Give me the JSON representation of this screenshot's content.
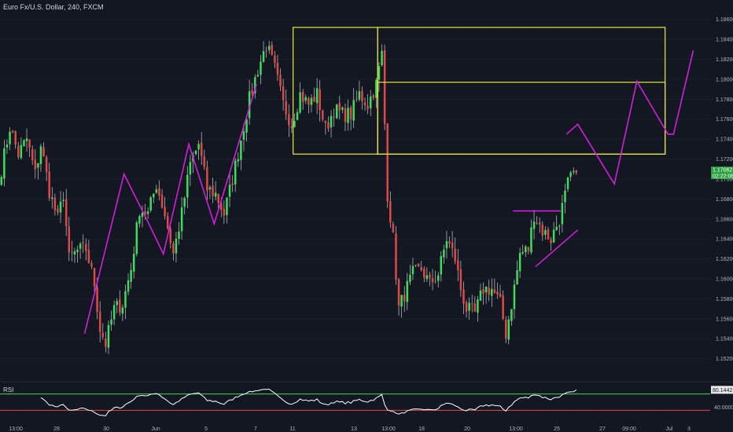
{
  "header": {
    "symbol_title": "Euro Fx/U.S. Dollar, 240, FXCM"
  },
  "colors": {
    "background": "#131722",
    "bull_candle": "#3ddc5a",
    "bear_candle": "#e04848",
    "wick": "#c8c8c8",
    "drawing_zigzag": "#d21fd8",
    "drawing_box": "#e8e83a",
    "rsi_line": "#ffffff",
    "rsi_upper_level": "#3ddc5a",
    "rsi_lower_level": "#e04848",
    "badge_bg": "#2ea043"
  },
  "price_axis": {
    "ticks": [
      "1.18600",
      "1.18400",
      "1.18200",
      "1.18000",
      "1.17800",
      "1.17600",
      "1.17400",
      "1.17200",
      "1.17000",
      "1.16800",
      "1.16600",
      "1.16400",
      "1.16200",
      "1.16000",
      "1.15800",
      "1.15600",
      "1.15400",
      "1.15200"
    ],
    "current_price": "1.17062",
    "countdown": "02:22:06"
  },
  "rsi_axis": {
    "value_label": "80.1442",
    "level_label": "40.0000"
  },
  "time_axis": {
    "labels": [
      "13:00",
      "28",
      "30",
      "Jun",
      "5",
      "7",
      "11",
      "13",
      "13:00",
      "18",
      "20",
      "13:00",
      "25",
      "27",
      "09:00",
      "Jul",
      "3"
    ]
  },
  "rsi_panel": {
    "label": "RSI"
  },
  "chart_data": {
    "type": "candlestick",
    "timeframe": "240",
    "ylim": [
      1.15,
      1.187
    ],
    "price_ticks": [
      1.186,
      1.184,
      1.182,
      1.18,
      1.178,
      1.176,
      1.174,
      1.172,
      1.17,
      1.168,
      1.166,
      1.164,
      1.162,
      1.16,
      1.158,
      1.156,
      1.154,
      1.152
    ],
    "last_price": 1.17062,
    "series": [
      {
        "name": "EURUSD",
        "waypoints": [
          [
            0,
            1.171
          ],
          [
            3,
            1.1752
          ],
          [
            6,
            1.1725
          ],
          [
            9,
            1.174
          ],
          [
            12,
            1.1705
          ],
          [
            14,
            1.1735
          ],
          [
            17,
            1.1688
          ],
          [
            20,
            1.166
          ],
          [
            22,
            1.1685
          ],
          [
            24,
            1.162
          ],
          [
            27,
            1.1628
          ],
          [
            30,
            1.163
          ],
          [
            33,
            1.1595
          ],
          [
            35,
            1.155
          ],
          [
            37,
            1.1535
          ],
          [
            40,
            1.157
          ],
          [
            43,
            1.1575
          ],
          [
            46,
            1.161
          ],
          [
            49,
            1.167
          ],
          [
            52,
            1.1665
          ],
          [
            55,
            1.1695
          ],
          [
            58,
            1.1665
          ],
          [
            61,
            1.1625
          ],
          [
            64,
            1.1665
          ],
          [
            67,
            1.1715
          ],
          [
            70,
            1.1735
          ],
          [
            73,
            1.169
          ],
          [
            76,
            1.1685
          ],
          [
            79,
            1.1665
          ],
          [
            82,
            1.17
          ],
          [
            85,
            1.174
          ],
          [
            88,
            1.178
          ],
          [
            91,
            1.181
          ],
          [
            94,
            1.1835
          ],
          [
            97,
            1.181
          ],
          [
            100,
            1.1775
          ],
          [
            103,
            1.1755
          ],
          [
            106,
            1.1785
          ],
          [
            109,
            1.1775
          ],
          [
            112,
            1.1785
          ],
          [
            115,
            1.175
          ],
          [
            118,
            1.177
          ],
          [
            121,
            1.1765
          ],
          [
            124,
            1.1765
          ],
          [
            127,
            1.1785
          ],
          [
            130,
            1.1775
          ],
          [
            133,
            1.1795
          ],
          [
            135,
            1.1825
          ],
          [
            137,
            1.1685
          ],
          [
            139,
            1.164
          ],
          [
            141,
            1.157
          ],
          [
            143,
            1.1585
          ],
          [
            146,
            1.1605
          ],
          [
            149,
            1.161
          ],
          [
            152,
            1.1595
          ],
          [
            155,
            1.1605
          ],
          [
            158,
            1.164
          ],
          [
            161,
            1.162
          ],
          [
            163,
            1.159
          ],
          [
            165,
            1.157
          ],
          [
            168,
            1.1565
          ],
          [
            171,
            1.159
          ],
          [
            174,
            1.159
          ],
          [
            177,
            1.1575
          ],
          [
            179,
            1.1545
          ],
          [
            181,
            1.1575
          ],
          [
            184,
            1.1625
          ],
          [
            187,
            1.163
          ],
          [
            189,
            1.1665
          ],
          [
            192,
            1.1648
          ],
          [
            195,
            1.164
          ],
          [
            198,
            1.166
          ],
          [
            201,
            1.1695
          ],
          [
            203,
            1.1705
          ]
        ]
      }
    ],
    "rsi": {
      "period": 14,
      "last": 80.1442,
      "levels": [
        70,
        30
      ],
      "ylim": [
        0,
        100
      ]
    },
    "drawings": {
      "boxes": [
        {
          "x": [
            104,
            134
          ],
          "y": [
            1.1725,
            1.1852
          ]
        },
        {
          "x": [
            134,
            236
          ],
          "y": [
            1.1725,
            1.1852
          ]
        },
        {
          "x": [
            134,
            236
          ],
          "y": [
            1.1725,
            1.1797
          ]
        }
      ],
      "zigzags": [
        {
          "points": [
            [
              30,
              1.1545
            ],
            [
              44,
              1.1705
            ],
            [
              52,
              1.166
            ],
            [
              58,
              1.1625
            ],
            [
              67,
              1.1735
            ],
            [
              76,
              1.1655
            ],
            [
              91,
              1.1795
            ]
          ]
        },
        {
          "points": [
            [
              201,
              1.1745
            ],
            [
              205,
              1.1755
            ],
            [
              218,
              1.1695
            ],
            [
              226,
              1.1798
            ],
            [
              237,
              1.1745
            ],
            [
              239,
              1.1745
            ],
            [
              246,
              1.1829
            ]
          ]
        },
        {
          "points": [
            [
              182,
              1.1668
            ],
            [
              199,
              1.1668
            ]
          ]
        },
        {
          "points": [
            [
              190,
              1.1612
            ],
            [
              205,
              1.1649
            ]
          ]
        }
      ]
    }
  }
}
